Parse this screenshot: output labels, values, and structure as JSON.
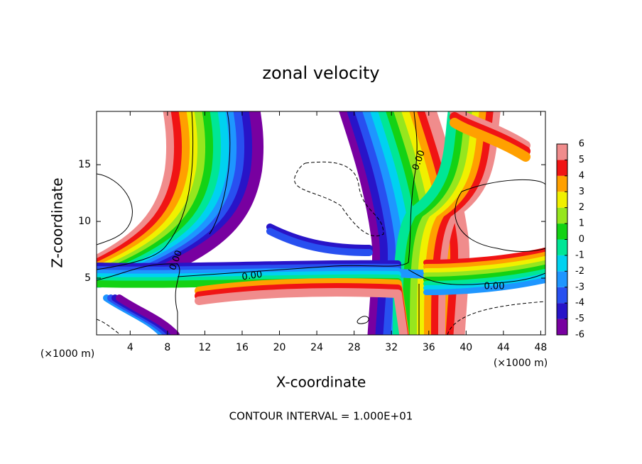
{
  "chart_data": {
    "type": "contour",
    "title": "zonal velocity",
    "x_label": "X-coordinate",
    "y_label": "Z-coordinate",
    "x_unit": "(×1000 m)",
    "annotation": "CONTOUR INTERVAL = 1.000E+01",
    "contour_label": "0.00",
    "xlim": [
      0.4,
      48.5
    ],
    "xticks": [
      4,
      8,
      12,
      16,
      20,
      24,
      28,
      32,
      36,
      40,
      44,
      48
    ],
    "ylim": [
      0,
      19.7
    ],
    "yticks": [
      5,
      10,
      15
    ],
    "colorbar": {
      "ticks": [
        -6,
        -5,
        -4,
        -3,
        -2,
        -1,
        0,
        1,
        2,
        3,
        4,
        5,
        6
      ],
      "colors": [
        "#7800a0",
        "#2814c8",
        "#2850f0",
        "#1e96ff",
        "#00d2f0",
        "#00e696",
        "#14d214",
        "#96e61e",
        "#f0f000",
        "#ffa000",
        "#f01414",
        "#f08c8c"
      ]
    }
  }
}
